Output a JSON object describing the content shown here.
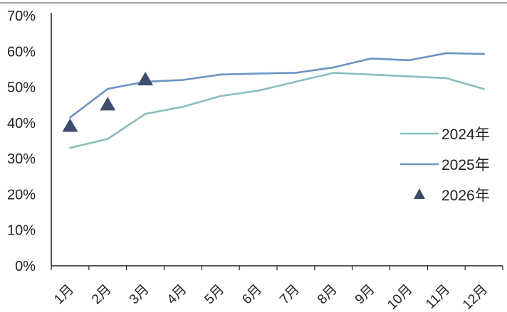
{
  "chart_data": {
    "type": "line",
    "categories": [
      "1月",
      "2月",
      "3月",
      "4月",
      "5月",
      "6月",
      "7月",
      "8月",
      "9月",
      "10月",
      "11月",
      "12月"
    ],
    "y_ticks": [
      "0%",
      "10%",
      "20%",
      "30%",
      "40%",
      "50%",
      "60%",
      "70%"
    ],
    "ylim": [
      0,
      70
    ],
    "series": [
      {
        "name": "2024年",
        "kind": "line",
        "color": "#8bbcbf",
        "values": [
          33,
          35.5,
          42.5,
          44.5,
          47.5,
          49,
          51.5,
          54,
          53.5,
          53,
          52.5,
          49.5
        ]
      },
      {
        "name": "2025年",
        "kind": "line",
        "color": "#6c93c4",
        "values": [
          41.5,
          49.5,
          51.5,
          52,
          53.5,
          53.8,
          54,
          55.5,
          58,
          57.5,
          59.5,
          59.3
        ]
      },
      {
        "name": "2026年",
        "kind": "marker",
        "color": "#3e4d6c",
        "values": [
          39,
          45,
          52,
          null,
          null,
          null,
          null,
          null,
          null,
          null,
          null,
          null
        ]
      }
    ],
    "legend_position": "right",
    "grid": false
  }
}
